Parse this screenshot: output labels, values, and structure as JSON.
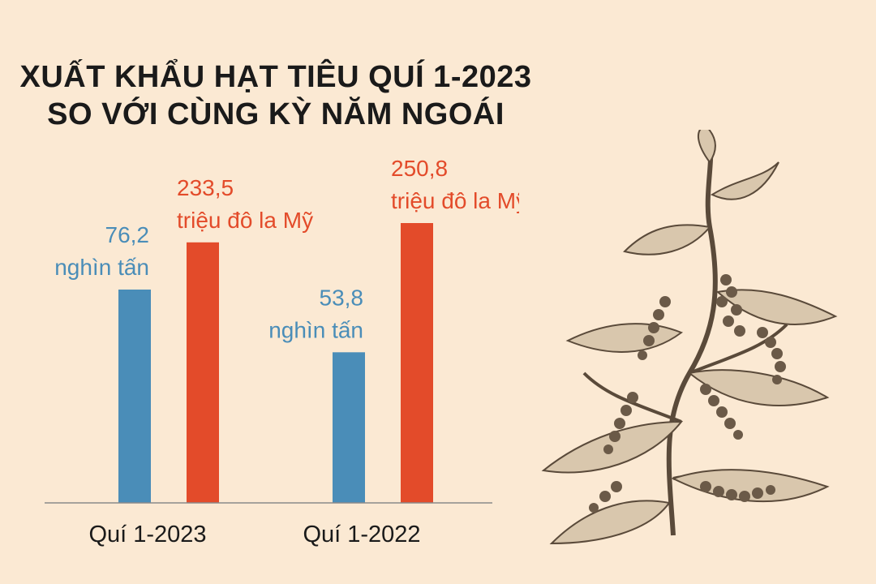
{
  "title_line1": "XUẤT KHẨU HẠT TIÊU QUÍ 1-2023",
  "title_line2": "SO VỚI CÙNG KỲ NĂM NGOÁI",
  "chart_data": {
    "type": "bar",
    "categories": [
      "Quí 1-2023",
      "Quí 1-2022"
    ],
    "series": [
      {
        "values": [
          76.2,
          53.8
        ],
        "labels": [
          "76,2",
          "53,8"
        ],
        "unit": "nghìn tấn",
        "color": "#4a8db8"
      },
      {
        "values": [
          233.5,
          250.8
        ],
        "labels": [
          "233,5",
          "250,8"
        ],
        "unit": "triệu đô la Mỹ",
        "color": "#e34b2a"
      }
    ],
    "grid": false,
    "legend": "none"
  },
  "colors": {
    "background": "#fbe9d3",
    "blue": "#4a8db8",
    "red": "#e34b2a"
  },
  "illustration": "pepper-plant-icon"
}
